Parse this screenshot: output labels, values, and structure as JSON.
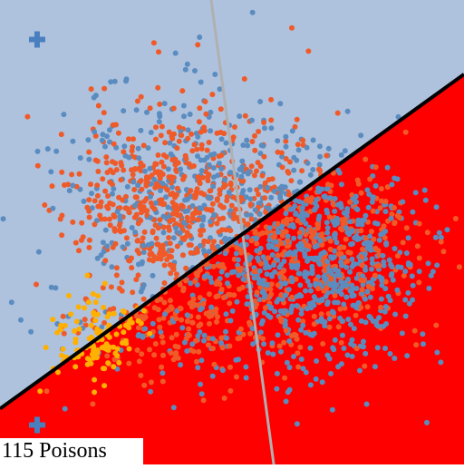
{
  "caption": "115 Poisons",
  "colors": {
    "region_upper": "#aec2de",
    "region_lower": "#ff0000",
    "boundary": "#000000",
    "secondary_line": "#b0b0b0",
    "class_blue": "#5b8cbf",
    "class_orange": "#f05a28",
    "poison": "#ffb000",
    "cross_marker": "#4a7fbf"
  },
  "chart_data": {
    "type": "scatter",
    "title": "",
    "xlabel": "",
    "ylabel": "",
    "xlim": [
      0,
      1
    ],
    "ylim": [
      0,
      1
    ],
    "grid": false,
    "legend": "none",
    "decision_boundary": {
      "from": [
        0.0,
        0.12
      ],
      "to": [
        1.0,
        0.84
      ]
    },
    "secondary_line": {
      "from": [
        0.455,
        1.0
      ],
      "to": [
        0.59,
        0.0
      ]
    },
    "cross_markers": [
      {
        "x": 0.08,
        "y": 0.915,
        "class": "blue"
      },
      {
        "x": 0.08,
        "y": 0.085,
        "class": "blue"
      }
    ],
    "clusters": [
      {
        "class": "orange",
        "center": [
          0.38,
          0.56
        ],
        "spread": [
          0.12,
          0.11
        ],
        "count": 620,
        "seed": 11
      },
      {
        "class": "blue",
        "center": [
          0.38,
          0.58
        ],
        "spread": [
          0.13,
          0.12
        ],
        "count": 300,
        "seed": 23
      },
      {
        "class": "blue",
        "center": [
          0.69,
          0.44
        ],
        "spread": [
          0.11,
          0.11
        ],
        "count": 700,
        "seed": 37
      },
      {
        "class": "orange",
        "center": [
          0.67,
          0.45
        ],
        "spread": [
          0.11,
          0.1
        ],
        "count": 330,
        "seed": 51
      },
      {
        "class": "orange",
        "center": [
          0.4,
          0.3
        ],
        "spread": [
          0.12,
          0.06
        ],
        "count": 160,
        "seed": 67
      },
      {
        "class": "blue",
        "center": [
          0.42,
          0.28
        ],
        "spread": [
          0.14,
          0.07
        ],
        "count": 90,
        "seed": 79
      }
    ],
    "poison_points": {
      "class": "poison",
      "center": [
        0.2,
        0.27
      ],
      "spread": [
        0.05,
        0.05
      ],
      "count": 115,
      "seed": 97
    },
    "sparse_points": [
      {
        "x": 0.43,
        "y": 0.92,
        "class": "blue"
      },
      {
        "x": 0.4,
        "y": 0.85,
        "class": "blue"
      },
      {
        "x": 0.11,
        "y": 0.63,
        "class": "blue"
      },
      {
        "x": 0.81,
        "y": 0.64,
        "class": "orange"
      },
      {
        "x": 0.83,
        "y": 0.25,
        "class": "blue"
      },
      {
        "x": 0.92,
        "y": 0.09,
        "class": "blue"
      },
      {
        "x": 0.95,
        "y": 0.22,
        "class": "blue"
      },
      {
        "x": 0.53,
        "y": 0.21,
        "class": "blue"
      },
      {
        "x": 0.9,
        "y": 0.47,
        "class": "orange"
      },
      {
        "x": 0.14,
        "y": 0.12,
        "class": "blue"
      },
      {
        "x": 0.2,
        "y": 0.13,
        "class": "orange"
      },
      {
        "x": 0.12,
        "y": 0.38,
        "class": "blue"
      }
    ]
  }
}
